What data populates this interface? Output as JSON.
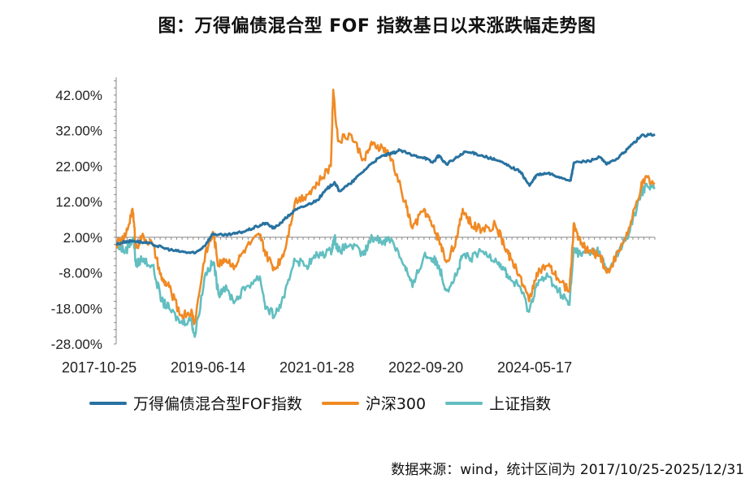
{
  "title": "图：万得偏债混合型 FOF 指数基日以来涨跌幅走势图",
  "source_note": "数据来源：wind，统计区间为 2017/10/25-2025/12/31",
  "colors": {
    "fof": "#2872A0",
    "hs300": "#F08A24",
    "sh": "#62BEC0",
    "axis": "#888888"
  },
  "legend": [
    {
      "key": "fof",
      "label": "万得偏债混合型FOF指数"
    },
    {
      "key": "hs300",
      "label": "沪深300"
    },
    {
      "key": "sh",
      "label": "上证指数"
    }
  ],
  "chart_data": {
    "type": "line",
    "title": "图：万得偏债混合型 FOF 指数基日以来涨跌幅走势图",
    "xlabel": "",
    "ylabel": "",
    "ylim": [
      -28,
      47
    ],
    "xlim": [
      "2017-10-25",
      "2025-12-31"
    ],
    "y_ticks": [
      "42.00%",
      "32.00%",
      "22.00%",
      "12.00%",
      "2.00%",
      "-8.00%",
      "-18.00%",
      "-28.00%"
    ],
    "y_tick_values": [
      42,
      32,
      22,
      12,
      2,
      -8,
      -18,
      -28
    ],
    "x_ticks": [
      "2017-10-25",
      "2019-06-14",
      "2021-01-28",
      "2022-09-20",
      "2024-05-17"
    ],
    "grid": false,
    "legend_position": "bottom",
    "series": [
      {
        "name": "万得偏债混合型FOF指数",
        "key": "fof",
        "points": [
          [
            "2017-10-25",
            0.0
          ],
          [
            "2017-12-15",
            0.8
          ],
          [
            "2018-02-01",
            1.0
          ],
          [
            "2018-03-15",
            0.6
          ],
          [
            "2018-05-15",
            0.0
          ],
          [
            "2018-07-15",
            -1.0
          ],
          [
            "2018-09-15",
            -1.8
          ],
          [
            "2018-11-15",
            -2.2
          ],
          [
            "2019-01-04",
            -2.5
          ],
          [
            "2019-02-25",
            -0.5
          ],
          [
            "2019-04-15",
            3.0
          ],
          [
            "2019-06-14",
            2.5
          ],
          [
            "2019-08-15",
            3.0
          ],
          [
            "2019-10-15",
            3.8
          ],
          [
            "2019-12-15",
            5.0
          ],
          [
            "2020-02-01",
            6.0
          ],
          [
            "2020-03-20",
            4.5
          ],
          [
            "2020-05-15",
            7.0
          ],
          [
            "2020-07-10",
            9.5
          ],
          [
            "2020-09-15",
            11.0
          ],
          [
            "2020-11-15",
            12.5
          ],
          [
            "2021-01-05",
            15.5
          ],
          [
            "2021-02-18",
            17.5
          ],
          [
            "2021-03-15",
            15.0
          ],
          [
            "2021-05-15",
            17.0
          ],
          [
            "2021-07-15",
            20.0
          ],
          [
            "2021-09-15",
            23.0
          ],
          [
            "2021-11-15",
            25.0
          ],
          [
            "2021-12-31",
            25.5
          ],
          [
            "2022-02-15",
            26.5
          ],
          [
            "2022-04-27",
            25.0
          ],
          [
            "2022-06-30",
            24.5
          ],
          [
            "2022-08-15",
            23.0
          ],
          [
            "2022-09-20",
            25.0
          ],
          [
            "2022-10-31",
            22.5
          ],
          [
            "2022-12-31",
            24.5
          ],
          [
            "2023-02-15",
            26.0
          ],
          [
            "2023-04-15",
            25.5
          ],
          [
            "2023-06-15",
            24.5
          ],
          [
            "2023-08-15",
            23.5
          ],
          [
            "2023-10-15",
            22.0
          ],
          [
            "2023-12-15",
            20.5
          ],
          [
            "2024-02-05",
            16.5
          ],
          [
            "2024-03-15",
            19.5
          ],
          [
            "2024-05-17",
            20.0
          ],
          [
            "2024-07-15",
            19.0
          ],
          [
            "2024-09-20",
            18.0
          ],
          [
            "2024-10-08",
            23.0
          ],
          [
            "2024-12-31",
            23.5
          ],
          [
            "2025-02-28",
            24.5
          ],
          [
            "2025-04-08",
            22.5
          ],
          [
            "2025-06-15",
            24.5
          ],
          [
            "2025-08-15",
            27.5
          ],
          [
            "2025-10-15",
            30.5
          ],
          [
            "2025-12-31",
            31.0
          ]
        ]
      },
      {
        "name": "沪深300",
        "key": "hs300",
        "points": [
          [
            "2017-10-25",
            0.0
          ],
          [
            "2017-12-15",
            2.0
          ],
          [
            "2018-01-24",
            10.0
          ],
          [
            "2018-02-12",
            -1.0
          ],
          [
            "2018-03-15",
            2.0
          ],
          [
            "2018-05-15",
            0.0
          ],
          [
            "2018-07-05",
            -10.0
          ],
          [
            "2018-08-15",
            -12.0
          ],
          [
            "2018-10-18",
            -20.0
          ],
          [
            "2018-12-15",
            -19.0
          ],
          [
            "2019-01-04",
            -22.0
          ],
          [
            "2019-03-05",
            -2.0
          ],
          [
            "2019-04-19",
            3.0
          ],
          [
            "2019-05-15",
            -6.0
          ],
          [
            "2019-06-14",
            -4.0
          ],
          [
            "2019-08-15",
            -6.0
          ],
          [
            "2019-10-15",
            -1.0
          ],
          [
            "2019-12-31",
            2.5
          ],
          [
            "2020-02-03",
            -3.0
          ],
          [
            "2020-03-23",
            -7.0
          ],
          [
            "2020-05-15",
            -2.0
          ],
          [
            "2020-07-13",
            12.0
          ],
          [
            "2020-09-15",
            14.0
          ],
          [
            "2020-11-15",
            17.0
          ],
          [
            "2021-01-28",
            22.0
          ],
          [
            "2021-02-10",
            43.5
          ],
          [
            "2021-03-09",
            29.0
          ],
          [
            "2021-05-15",
            31.0
          ],
          [
            "2021-07-28",
            24.0
          ],
          [
            "2021-09-15",
            28.0
          ],
          [
            "2021-11-15",
            27.0
          ],
          [
            "2021-12-31",
            24.0
          ],
          [
            "2022-03-15",
            12.0
          ],
          [
            "2022-04-26",
            4.5
          ],
          [
            "2022-06-30",
            10.0
          ],
          [
            "2022-08-15",
            5.0
          ],
          [
            "2022-09-20",
            1.5
          ],
          [
            "2022-10-31",
            -5.0
          ],
          [
            "2022-12-31",
            2.0
          ],
          [
            "2023-01-30",
            10.0
          ],
          [
            "2023-03-15",
            6.0
          ],
          [
            "2023-05-15",
            4.0
          ],
          [
            "2023-07-31",
            5.5
          ],
          [
            "2023-09-15",
            0.0
          ],
          [
            "2023-10-23",
            -4.0
          ],
          [
            "2023-12-15",
            -9.0
          ],
          [
            "2024-02-02",
            -16.0
          ],
          [
            "2024-03-15",
            -8.0
          ],
          [
            "2024-05-17",
            -6.0
          ],
          [
            "2024-07-15",
            -10.0
          ],
          [
            "2024-09-13",
            -13.0
          ],
          [
            "2024-10-08",
            6.0
          ],
          [
            "2024-11-15",
            0.0
          ],
          [
            "2024-12-31",
            -2.0
          ],
          [
            "2025-02-28",
            -3.0
          ],
          [
            "2025-04-08",
            -8.0
          ],
          [
            "2025-06-15",
            -2.0
          ],
          [
            "2025-08-15",
            5.0
          ],
          [
            "2025-10-15",
            16.0
          ],
          [
            "2025-11-15",
            19.0
          ],
          [
            "2025-12-31",
            17.0
          ]
        ]
      },
      {
        "name": "上证指数",
        "key": "sh",
        "points": [
          [
            "2017-10-25",
            0.0
          ],
          [
            "2017-12-15",
            -2.0
          ],
          [
            "2018-01-29",
            2.0
          ],
          [
            "2018-02-12",
            -6.0
          ],
          [
            "2018-03-15",
            -4.0
          ],
          [
            "2018-05-15",
            -6.0
          ],
          [
            "2018-07-05",
            -16.0
          ],
          [
            "2018-08-15",
            -18.0
          ],
          [
            "2018-10-18",
            -22.0
          ],
          [
            "2018-12-15",
            -21.0
          ],
          [
            "2019-01-04",
            -26.0
          ],
          [
            "2019-03-05",
            -8.0
          ],
          [
            "2019-04-19",
            -5.0
          ],
          [
            "2019-05-15",
            -14.0
          ],
          [
            "2019-06-14",
            -12.0
          ],
          [
            "2019-08-15",
            -16.0
          ],
          [
            "2019-10-15",
            -12.0
          ],
          [
            "2019-12-31",
            -9.0
          ],
          [
            "2020-02-03",
            -18.0
          ],
          [
            "2020-03-23",
            -20.0
          ],
          [
            "2020-05-15",
            -15.0
          ],
          [
            "2020-07-09",
            -4.0
          ],
          [
            "2020-09-15",
            -6.0
          ],
          [
            "2020-11-15",
            -3.0
          ],
          [
            "2021-01-28",
            -2.0
          ],
          [
            "2021-02-18",
            2.0
          ],
          [
            "2021-03-09",
            -2.0
          ],
          [
            "2021-05-15",
            0.0
          ],
          [
            "2021-07-28",
            -3.0
          ],
          [
            "2021-09-15",
            2.0
          ],
          [
            "2021-11-15",
            1.0
          ],
          [
            "2021-12-31",
            1.5
          ],
          [
            "2022-03-15",
            -6.0
          ],
          [
            "2022-04-26",
            -12.0
          ],
          [
            "2022-06-30",
            -3.0
          ],
          [
            "2022-08-15",
            -4.0
          ],
          [
            "2022-09-20",
            -6.0
          ],
          [
            "2022-10-31",
            -13.0
          ],
          [
            "2022-12-31",
            -8.0
          ],
          [
            "2023-01-30",
            -3.0
          ],
          [
            "2023-03-15",
            -4.0
          ],
          [
            "2023-05-15",
            -2.0
          ],
          [
            "2023-07-31",
            -4.0
          ],
          [
            "2023-09-15",
            -7.0
          ],
          [
            "2023-10-23",
            -10.0
          ],
          [
            "2023-12-15",
            -12.0
          ],
          [
            "2024-02-02",
            -19.0
          ],
          [
            "2024-03-15",
            -11.0
          ],
          [
            "2024-05-17",
            -9.0
          ],
          [
            "2024-07-15",
            -13.0
          ],
          [
            "2024-09-13",
            -17.0
          ],
          [
            "2024-10-08",
            -1.0
          ],
          [
            "2024-11-15",
            -3.0
          ],
          [
            "2024-12-31",
            -2.0
          ],
          [
            "2025-02-28",
            -2.0
          ],
          [
            "2025-04-08",
            -8.0
          ],
          [
            "2025-06-15",
            -2.0
          ],
          [
            "2025-08-15",
            4.0
          ],
          [
            "2025-10-15",
            14.0
          ],
          [
            "2025-11-15",
            17.0
          ],
          [
            "2025-12-31",
            16.0
          ]
        ]
      }
    ]
  }
}
